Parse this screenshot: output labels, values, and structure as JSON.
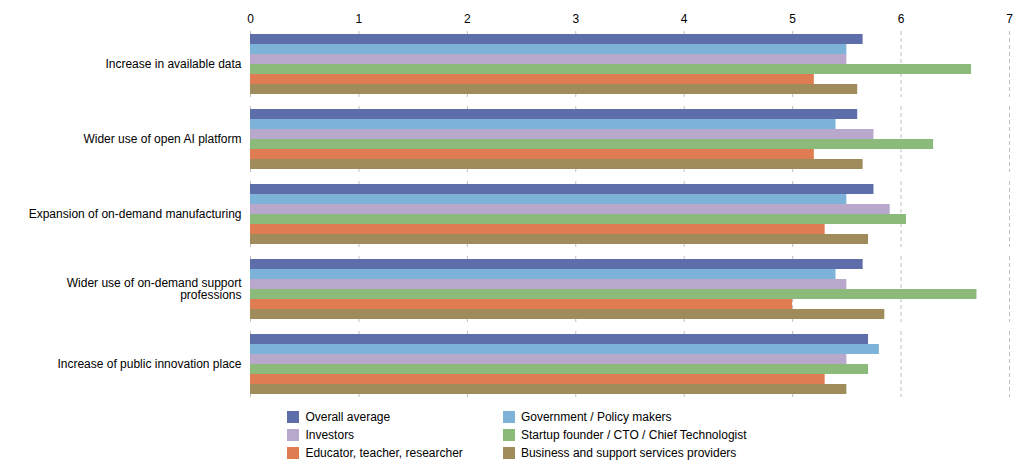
{
  "chart_data": {
    "type": "bar",
    "orientation": "horizontal",
    "categories": [
      "Increase in available data",
      "Wider use of open AI platform",
      "Expansion of on-demand manufacturing",
      "Wider use of on-demand support\nprofessions",
      "Increase of public innovation place"
    ],
    "series": [
      {
        "name": "Overall average",
        "color": "#5d6eaa",
        "values": [
          5.65,
          5.6,
          5.75,
          5.65,
          5.7
        ]
      },
      {
        "name": "Government / Policy makers",
        "color": "#7db3d8",
        "values": [
          5.5,
          5.4,
          5.5,
          5.4,
          5.8
        ]
      },
      {
        "name": "Investors",
        "color": "#b8a9cc",
        "values": [
          5.5,
          5.75,
          5.9,
          5.5,
          5.5
        ]
      },
      {
        "name": "Startup founder / CTO / Chief Technologist",
        "color": "#8bba7a",
        "values": [
          6.65,
          6.3,
          6.05,
          6.7,
          5.7
        ]
      },
      {
        "name": "Educator, teacher, researcher",
        "color": "#e07c52",
        "values": [
          5.2,
          5.2,
          5.3,
          5.0,
          5.3
        ]
      },
      {
        "name": "Business and support services providers",
        "color": "#a08c5a",
        "values": [
          5.6,
          5.65,
          5.7,
          5.85,
          5.5
        ]
      }
    ],
    "xlim": [
      0,
      7
    ],
    "xticks": [
      0,
      1,
      2,
      3,
      4,
      5,
      6,
      7
    ],
    "grid": true,
    "legend": "bottom"
  }
}
